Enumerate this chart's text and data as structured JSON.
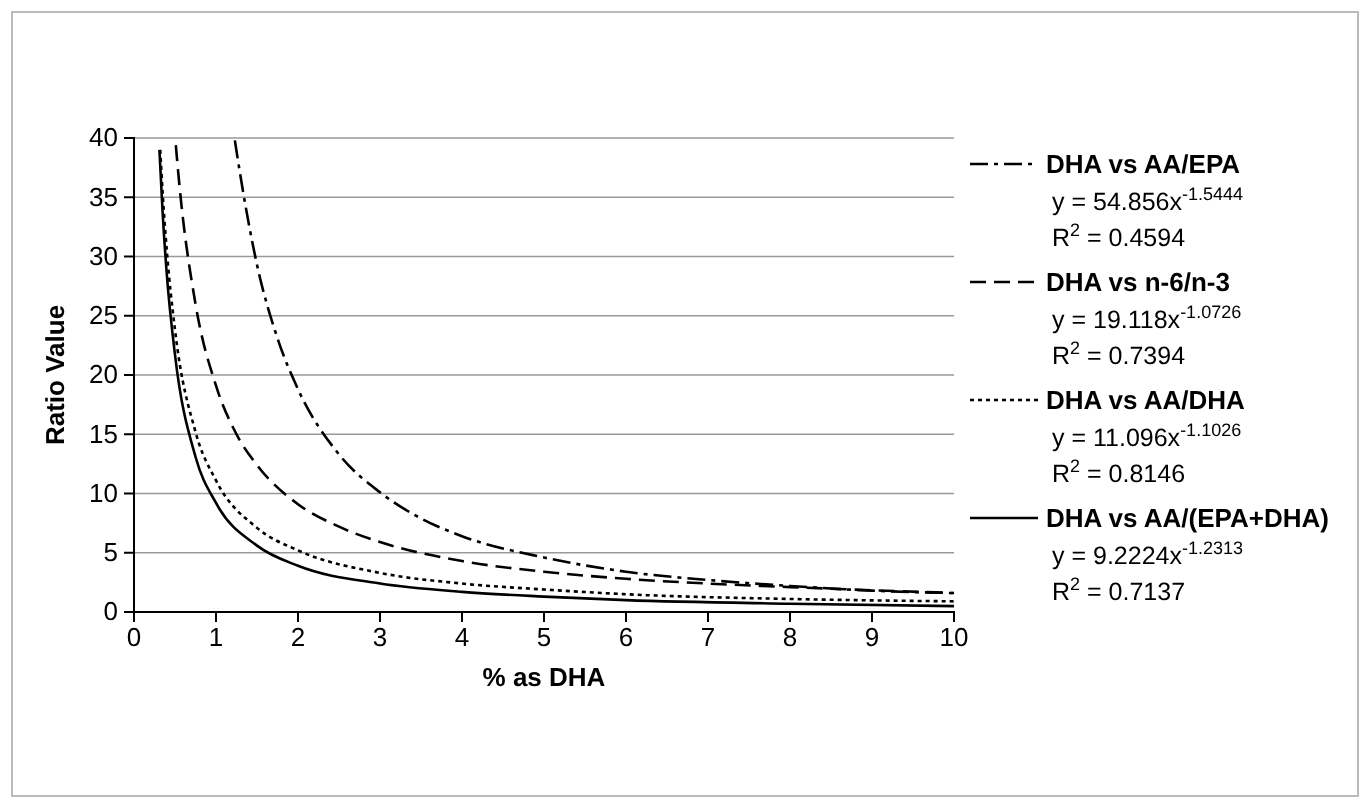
{
  "chart_data": {
    "type": "line",
    "xlabel": "% as DHA",
    "ylabel": "Ratio Value",
    "xlim": [
      0,
      10
    ],
    "ylim": [
      0,
      40
    ],
    "xticks": [
      0,
      1,
      2,
      3,
      4,
      5,
      6,
      7,
      8,
      9,
      10
    ],
    "yticks": [
      0,
      5,
      10,
      15,
      20,
      25,
      30,
      35,
      40
    ],
    "grid": "y",
    "legend": "right",
    "marker": "none",
    "series": [
      {
        "name": "DHA vs AA/EPA",
        "color": "#000000",
        "line_style": "dashdot",
        "x": [
          1.23,
          1.25,
          1.5,
          1.75,
          2,
          2.5,
          3,
          3.5,
          4,
          5,
          6,
          7,
          8,
          9,
          10
        ],
        "values": [
          39.8,
          38.9,
          29.3,
          23.1,
          18.8,
          13.3,
          10.1,
          7.9,
          6.4,
          4.6,
          3.4,
          2.7,
          2.2,
          1.8,
          1.6
        ]
      },
      {
        "name": "DHA vs n-6/n-3",
        "color": "#000000",
        "line_style": "dashed",
        "x": [
          0.51,
          0.55,
          0.75,
          1,
          1.25,
          1.5,
          2,
          2.5,
          3,
          4,
          5,
          6,
          7,
          8,
          10
        ],
        "values": [
          39.4,
          36.3,
          26.0,
          19.1,
          15.0,
          12.4,
          9.1,
          7.2,
          5.9,
          4.3,
          3.4,
          2.8,
          2.4,
          2.1,
          1.6
        ]
      },
      {
        "name": "DHA vs AA/DHA",
        "color": "#000000",
        "line_style": "dotted",
        "x": [
          0.32,
          0.35,
          0.4,
          0.5,
          0.75,
          1,
          1.5,
          2,
          3,
          4,
          5,
          6,
          8,
          10
        ],
        "values": [
          39.0,
          35.3,
          30.5,
          23.8,
          15.2,
          11.1,
          7.1,
          5.2,
          3.3,
          2.4,
          1.9,
          1.5,
          1.1,
          0.9
        ]
      },
      {
        "name": "DHA vs AA/(EPA+DHA)",
        "color": "#000000",
        "line_style": "solid",
        "x": [
          0.31,
          0.35,
          0.4,
          0.5,
          0.75,
          1,
          1.5,
          2,
          3,
          4,
          5,
          6,
          8,
          10
        ],
        "values": [
          39.0,
          33.6,
          28.5,
          21.7,
          13.1,
          9.2,
          5.6,
          3.9,
          2.4,
          1.7,
          1.3,
          1.0,
          0.7,
          0.5
        ]
      }
    ],
    "annotations": [
      "y = 54.856x$^{-1.5444}$",
      "R$^{2}$ = 0.4594",
      "y = 19.118x$^{-1.0726}$",
      "R$^{2}$ = 0.7394",
      "y = 11.096x$^{-1.1026}$",
      "R$^{2}$ = 0.8146",
      "y = 9.2224x$^{-1.2313}$",
      "R$^{2}$ = 0.7137"
    ]
  }
}
